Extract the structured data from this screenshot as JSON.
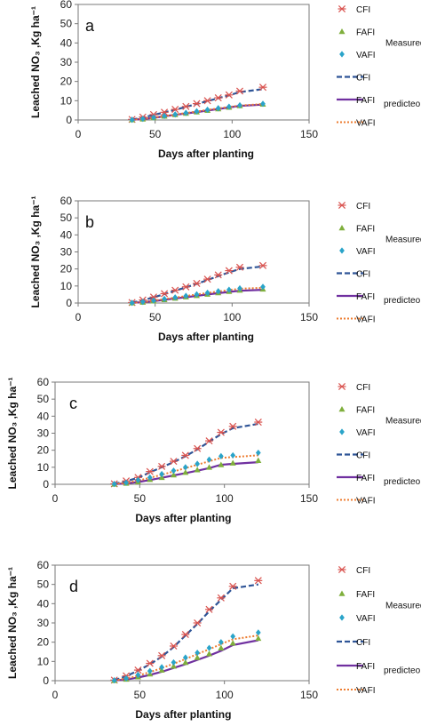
{
  "chart_data": [
    {
      "type": "line",
      "panel_label": "a",
      "xlabel": "Days after planting",
      "ylabel": "Leached NO₃ ,Kg ha⁻¹",
      "xlim": [
        0,
        150
      ],
      "ylim": [
        0,
        60
      ],
      "xticks": [
        0,
        50,
        100,
        150
      ],
      "yticks": [
        0,
        10,
        20,
        30,
        40,
        50,
        60
      ],
      "x": [
        35,
        42,
        49,
        56,
        63,
        70,
        77,
        84,
        91,
        98,
        105,
        120
      ],
      "series": [
        {
          "name": "CFI",
          "group": "Measured",
          "values": [
            0.3,
            1.5,
            2.8,
            4.0,
            5.5,
            7.0,
            8.5,
            10.0,
            11.5,
            13.0,
            15.0,
            17.0
          ]
        },
        {
          "name": "FAFI",
          "group": "Measured",
          "values": [
            0.1,
            0.5,
            1.2,
            2.0,
            2.8,
            3.5,
            4.2,
            5.0,
            5.8,
            6.6,
            7.4,
            8.2
          ]
        },
        {
          "name": "VAFI",
          "group": "Measured",
          "values": [
            0.1,
            0.6,
            1.3,
            2.1,
            2.9,
            3.7,
            4.5,
            5.3,
            6.1,
            6.9,
            7.6,
            8.4
          ]
        },
        {
          "name": "CFI",
          "group": "predicted",
          "values": [
            0.2,
            1.3,
            2.6,
            3.9,
            5.3,
            6.8,
            8.3,
            9.8,
            11.3,
            12.8,
            14.5,
            16.0
          ]
        },
        {
          "name": "FAFI",
          "group": "predicted",
          "values": [
            0.1,
            0.5,
            1.1,
            1.9,
            2.7,
            3.4,
            4.1,
            4.9,
            5.7,
            6.5,
            7.3,
            8.0
          ]
        },
        {
          "name": "VAFI",
          "group": "predicted",
          "values": [
            0.1,
            0.6,
            1.2,
            2.0,
            2.8,
            3.6,
            4.4,
            5.2,
            6.0,
            6.8,
            7.5,
            8.3
          ]
        }
      ]
    },
    {
      "type": "line",
      "panel_label": "b",
      "xlabel": "Days after planting",
      "ylabel": "Leached NO₃ ,Kg ha⁻¹",
      "xlim": [
        0,
        150
      ],
      "ylim": [
        0,
        60
      ],
      "xticks": [
        0,
        50,
        100,
        150
      ],
      "yticks": [
        0,
        10,
        20,
        30,
        40,
        50,
        60
      ],
      "x": [
        35,
        42,
        49,
        56,
        63,
        70,
        77,
        84,
        91,
        98,
        105,
        120
      ],
      "series": [
        {
          "name": "CFI",
          "group": "Measured",
          "values": [
            0.3,
            1.8,
            3.5,
            5.5,
            7.5,
            9.5,
            11.5,
            14.0,
            16.5,
            19.0,
            21.0,
            22.0
          ]
        },
        {
          "name": "FAFI",
          "group": "Measured",
          "values": [
            0.1,
            0.5,
            1.2,
            2.0,
            2.8,
            3.6,
            4.4,
            5.2,
            6.0,
            6.8,
            7.5,
            8.2
          ]
        },
        {
          "name": "VAFI",
          "group": "Measured",
          "values": [
            0.1,
            0.7,
            1.5,
            2.4,
            3.3,
            4.2,
            5.1,
            6.0,
            6.9,
            7.8,
            8.6,
            9.5
          ]
        },
        {
          "name": "CFI",
          "group": "predicted",
          "values": [
            0.2,
            1.6,
            3.3,
            5.2,
            7.2,
            9.2,
            11.2,
            13.5,
            15.8,
            18.0,
            20.0,
            21.5
          ]
        },
        {
          "name": "FAFI",
          "group": "predicted",
          "values": [
            0.1,
            0.5,
            1.1,
            1.9,
            2.7,
            3.4,
            4.2,
            5.0,
            5.8,
            6.5,
            7.2,
            7.8
          ]
        },
        {
          "name": "VAFI",
          "group": "predicted",
          "values": [
            0.1,
            0.6,
            1.4,
            2.3,
            3.2,
            4.1,
            5.0,
            5.9,
            6.8,
            7.6,
            8.4,
            9.0
          ]
        }
      ]
    },
    {
      "type": "line",
      "panel_label": "c",
      "xlabel": "Days after planting",
      "ylabel": "Leached NO₃ ,Kg ha⁻¹",
      "xlim": [
        0,
        150
      ],
      "ylim": [
        0,
        60
      ],
      "xticks": [
        0,
        50,
        100,
        150
      ],
      "yticks": [
        0,
        10,
        20,
        30,
        40,
        50,
        60
      ],
      "x": [
        35,
        42,
        49,
        56,
        63,
        70,
        77,
        84,
        91,
        98,
        105,
        120
      ],
      "series": [
        {
          "name": "CFI",
          "group": "Measured",
          "values": [
            0.3,
            2.0,
            4.0,
            7.5,
            10.5,
            13.5,
            17.0,
            21.0,
            25.5,
            30.5,
            34.0,
            36.5
          ]
        },
        {
          "name": "FAFI",
          "group": "Measured",
          "values": [
            0.1,
            0.6,
            1.5,
            2.8,
            4.0,
            5.5,
            7.0,
            8.5,
            10.0,
            11.5,
            12.5,
            14.0
          ]
        },
        {
          "name": "VAFI",
          "group": "Measured",
          "values": [
            0.2,
            1.0,
            2.5,
            4.0,
            6.0,
            8.0,
            10.0,
            12.0,
            14.5,
            16.5,
            17.0,
            18.5
          ]
        },
        {
          "name": "CFI",
          "group": "predicted",
          "values": [
            0.2,
            1.8,
            3.8,
            7.0,
            10.0,
            13.0,
            16.5,
            20.5,
            25.0,
            29.5,
            33.0,
            35.5
          ]
        },
        {
          "name": "FAFI",
          "group": "predicted",
          "values": [
            0.1,
            0.5,
            1.3,
            2.5,
            3.8,
            5.2,
            6.6,
            8.0,
            9.5,
            11.5,
            12.0,
            13.0
          ]
        },
        {
          "name": "VAFI",
          "group": "predicted",
          "values": [
            0.2,
            0.9,
            2.2,
            3.8,
            5.6,
            7.5,
            9.5,
            11.5,
            13.5,
            15.5,
            16.0,
            17.0
          ]
        }
      ]
    },
    {
      "type": "line",
      "panel_label": "d",
      "xlabel": "Days after planting",
      "ylabel": "Leached NO₃ ,Kg ha⁻¹",
      "xlim": [
        0,
        150
      ],
      "ylim": [
        0,
        60
      ],
      "xticks": [
        0,
        50,
        100,
        150
      ],
      "yticks": [
        0,
        10,
        20,
        30,
        40,
        50,
        60
      ],
      "x": [
        35,
        42,
        49,
        56,
        63,
        70,
        77,
        84,
        91,
        98,
        105,
        120
      ],
      "series": [
        {
          "name": "CFI",
          "group": "Measured",
          "values": [
            0.3,
            2.5,
            5.5,
            9.0,
            13.0,
            18.0,
            24.0,
            30.0,
            37.0,
            43.0,
            49.0,
            52.0
          ]
        },
        {
          "name": "FAFI",
          "group": "Measured",
          "values": [
            0.1,
            0.8,
            2.0,
            3.5,
            5.5,
            7.5,
            9.5,
            12.0,
            14.0,
            17.0,
            19.5,
            22.0
          ]
        },
        {
          "name": "VAFI",
          "group": "Measured",
          "values": [
            0.2,
            1.2,
            3.0,
            5.0,
            7.0,
            9.5,
            12.0,
            14.5,
            17.0,
            20.0,
            23.0,
            25.0
          ]
        },
        {
          "name": "CFI",
          "group": "predicted",
          "values": [
            0.2,
            2.3,
            5.2,
            8.5,
            12.5,
            17.5,
            23.5,
            29.5,
            36.0,
            42.0,
            48.0,
            50.0
          ]
        },
        {
          "name": "FAFI",
          "group": "predicted",
          "values": [
            0.1,
            0.6,
            1.6,
            3.0,
            4.6,
            6.6,
            8.6,
            10.8,
            13.0,
            15.5,
            18.5,
            21.0
          ]
        },
        {
          "name": "VAFI",
          "group": "predicted",
          "values": [
            0.2,
            1.0,
            2.6,
            4.5,
            6.5,
            8.8,
            11.2,
            13.8,
            16.3,
            19.0,
            21.5,
            23.5
          ]
        }
      ]
    }
  ],
  "legend_groups": {
    "measured": "Measured",
    "predicted": "predicteo"
  },
  "colors": {
    "CFI_marker": "#d9534f",
    "FAFI_marker": "#7faf3c",
    "VAFI_marker": "#2aa4c9",
    "CFI_line": "#2f5597",
    "FAFI_line": "#7030a0",
    "VAFI_line": "#ed7d31"
  }
}
